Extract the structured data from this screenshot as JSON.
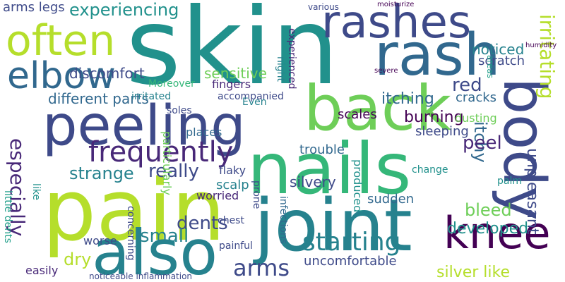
{
  "palette": [
    "#440154",
    "#482878",
    "#3e4a89",
    "#31688e",
    "#26828e",
    "#1f9e89",
    "#35b779",
    "#6ece58",
    "#b5de2b",
    "#fde725"
  ],
  "words": [
    "skin",
    "rash",
    "rashes",
    "often",
    "elbow",
    "peeling",
    "back",
    "pain",
    "nails",
    "body",
    "joint",
    "also",
    "knee",
    "frequently",
    "arms",
    "itching",
    "red",
    "burning",
    "itchy",
    "irritating",
    "unpleasant",
    "especially",
    "starting",
    "developed",
    "dents",
    "small",
    "dry",
    "bleed",
    "strange",
    "really",
    "peel",
    "silver like",
    "experiencing",
    "sensitive",
    "noticed",
    "scratch",
    "cracks",
    "sleeping",
    "dusting",
    "discomfort",
    "different parts",
    "fingers",
    "Moreover",
    "irritated",
    "accompanied",
    "soles",
    "places",
    "Even",
    "particularly",
    "trouble",
    "scalp",
    "flaky",
    "scales",
    "silvery",
    "sudden",
    "produced",
    "uncomfortable",
    "worried",
    "infections",
    "prone",
    "change",
    "experienced",
    "palm",
    "chest",
    "painful",
    "concerning",
    "worse",
    "easily",
    "little dents",
    "like",
    "arms legs",
    "night",
    "noticeable inflammation",
    "various",
    "moisturize",
    "severe",
    "humidity",
    "areas"
  ]
}
